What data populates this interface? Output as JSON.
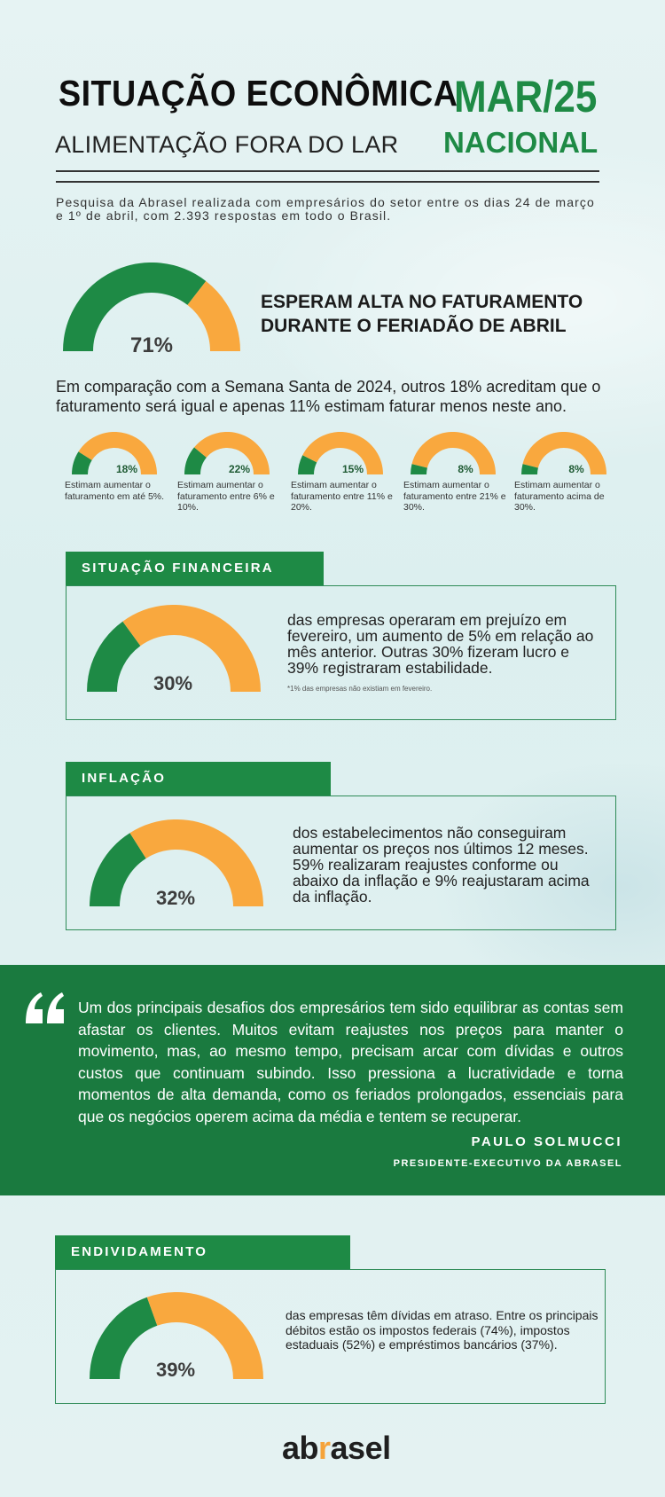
{
  "header": {
    "title": "SITUAÇÃO ECONÔMICA",
    "subtitle": "ALIMENTAÇÃO FORA DO LAR",
    "period": "MAR/25",
    "scope": "NACIONAL"
  },
  "intro": "Pesquisa da Abrasel realizada com empresários do setor entre os dias 24 de março e 1º de abril, com 2.393 respostas em todo o Brasil.",
  "feriado": {
    "percent_label": "71%",
    "percent": 71,
    "headline_1": "ESPERAM ALTA NO FATURAMENTO",
    "headline_2": "DURANTE O FERIADÃO DE ABRIL",
    "comparison": "Em comparação com a Semana Santa de 2024, outros 18% acreditam que o faturamento será igual e apenas 11% estimam faturar menos neste ano.",
    "breakdown": [
      {
        "percent_label": "18%",
        "percent": 18,
        "label": "Estimam aumentar o faturamento em até 5%."
      },
      {
        "percent_label": "22%",
        "percent": 22,
        "label": "Estimam aumentar o faturamento entre 6% e 10%."
      },
      {
        "percent_label": "15%",
        "percent": 15,
        "label": "Estimam aumentar o faturamento entre 11% e 20%."
      },
      {
        "percent_label": "8%",
        "percent": 8,
        "label": "Estimam aumentar o faturamento entre 21% e 30%."
      },
      {
        "percent_label": "8%",
        "percent": 8,
        "label": "Estimam aumentar o faturamento acima de 30%."
      }
    ]
  },
  "financeira": {
    "tag": "SITUAÇÃO FINANCEIRA",
    "percent_label": "30%",
    "percent": 30,
    "text": "das empresas operaram em prejuízo em fevereiro, um aumento de 5% em relação ao mês anterior. Outras 30% fizeram lucro e 39% registraram estabilidade.",
    "note": "*1% das empresas não existiam em fevereiro."
  },
  "inflacao": {
    "tag": "INFLAÇÃO",
    "percent_label": "32%",
    "percent": 32,
    "text": "dos estabelecimentos não conseguiram aumentar os preços nos últimos 12 meses. 59% realizaram reajustes conforme ou abaixo da inflação e 9% reajustaram acima da inflação."
  },
  "quote": {
    "text": "Um dos principais desafios dos empresários tem sido equilibrar as contas sem afastar os clientes. Muitos evitam reajustes nos preços para manter o movimento, mas, ao mesmo tempo, precisam arcar com dívidas e outros custos que continuam subindo. Isso pressiona a lucratividade e torna momentos de alta demanda, como os feriados prolongados, essenciais para que os negócios operem acima da média e tentem se recuperar.",
    "author": "PAULO SOLMUCCI",
    "role": "PRESIDENTE-EXECUTIVO DA ABRASEL"
  },
  "endividamento": {
    "tag": "ENDIVIDAMENTO",
    "percent_label": "39%",
    "percent": 39,
    "text": "das empresas têm dívidas em atraso. Entre os principais débitos estão os impostos federais (74%), impostos estaduais (52%) e empréstimos bancários (37%)."
  },
  "logo": {
    "pre": "ab",
    "accent": "r",
    "post": "asel"
  },
  "colors": {
    "green": "#1e8a45",
    "orange": "#f9a83e",
    "dark_green": "#1a7a3f"
  }
}
